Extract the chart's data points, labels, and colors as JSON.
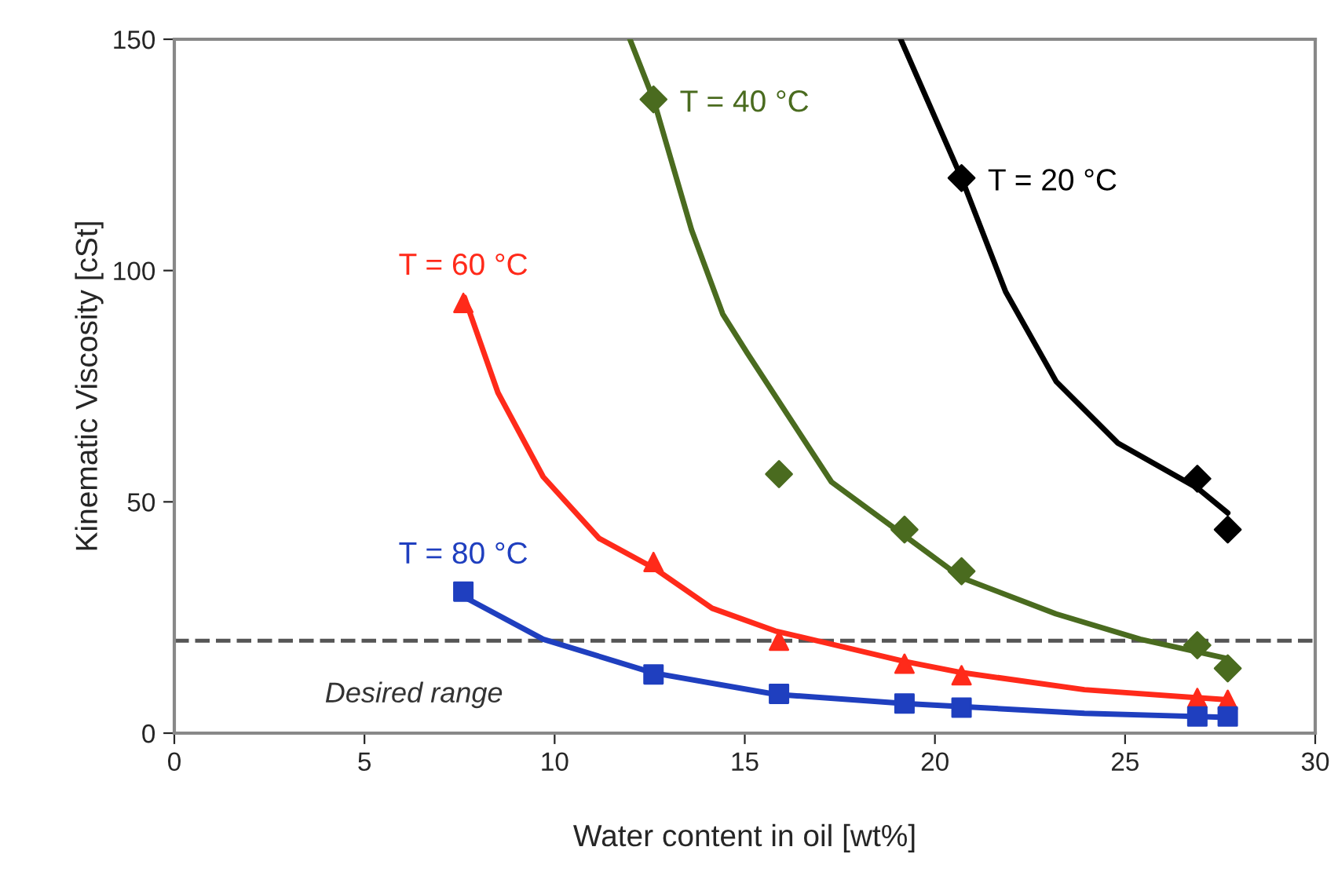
{
  "chart_data": {
    "type": "scatter",
    "xlabel": "Water content in oil [wt%]",
    "ylabel": "Kinematic Viscosity [cSt]",
    "xlim": [
      0,
      30
    ],
    "ylim": [
      0,
      150
    ],
    "xticks": [
      0,
      5,
      10,
      15,
      20,
      25,
      30
    ],
    "yticks": [
      0,
      50,
      100,
      150
    ],
    "grid": false,
    "legend": false,
    "series": [
      {
        "type": "line",
        "color": "#000000",
        "marker": "none",
        "line_style": "solid",
        "x": [
          19.1,
          20.7,
          21.86,
          23.19,
          24.81,
          26.9,
          27.7
        ],
        "values": [
          150,
          120,
          95.4,
          76,
          62.7,
          53,
          47.6
        ]
      },
      {
        "type": "line",
        "color": "#4a6b1f",
        "marker": "none",
        "line_style": "solid",
        "x": [
          11.98,
          12.6,
          13.6,
          14.42,
          15.07,
          17.28,
          19.2,
          20.7,
          23.18,
          25.4,
          27.7
        ],
        "values": [
          150,
          137,
          108.8,
          90.6,
          82.1,
          54.3,
          42.7,
          33.6,
          25.8,
          20.3,
          16.1
        ]
      },
      {
        "type": "line",
        "color": "#ff2a1a",
        "marker": "none",
        "line_style": "solid",
        "x": [
          7.63,
          8.51,
          9.7,
          11.17,
          12.65,
          14.14,
          15.8,
          19.2,
          20.7,
          23.93,
          27.7
        ],
        "values": [
          94.2,
          73.6,
          55.4,
          42.1,
          35.5,
          27,
          22.1,
          15.5,
          13.1,
          9.4,
          7.2
        ]
      },
      {
        "type": "line",
        "color": "#1f3fbf",
        "marker": "none",
        "line_style": "solid",
        "x": [
          7.63,
          9.7,
          12.6,
          15.8,
          19.2,
          23.93,
          27.7
        ],
        "values": [
          29.4,
          20.3,
          13,
          8.4,
          6.4,
          4.3,
          3.4
        ]
      },
      {
        "name": "T = 20 °C",
        "color": "#000000",
        "marker": "diamond",
        "x": [
          20.7,
          26.9,
          27.7
        ],
        "values": [
          120,
          55,
          44
        ]
      },
      {
        "name": "T = 40 °C",
        "color": "#4a6b1f",
        "marker": "diamond",
        "x": [
          12.6,
          15.9,
          19.2,
          20.7,
          26.9,
          27.7
        ],
        "values": [
          137,
          56,
          44,
          35,
          19,
          14
        ]
      },
      {
        "name": "T = 60 °C",
        "color": "#ff2a1a",
        "marker": "triangle",
        "x": [
          7.6,
          12.6,
          15.9,
          19.2,
          20.7,
          26.9,
          27.7
        ],
        "values": [
          93,
          37,
          20,
          15,
          12.5,
          7.6,
          7.2
        ]
      },
      {
        "name": "T = 80 °C",
        "color": "#1f3fbf",
        "marker": "square",
        "x": [
          7.6,
          12.6,
          15.9,
          19.2,
          20.7,
          26.9,
          27.7
        ],
        "values": [
          30.6,
          12.7,
          8.5,
          6.4,
          5.5,
          3.6,
          3.6
        ]
      }
    ],
    "ref_lines": [
      {
        "axis": "y",
        "value": 20,
        "color": "#555555",
        "line_style": "dashed"
      }
    ],
    "annotations": [
      "Desired range"
    ]
  }
}
